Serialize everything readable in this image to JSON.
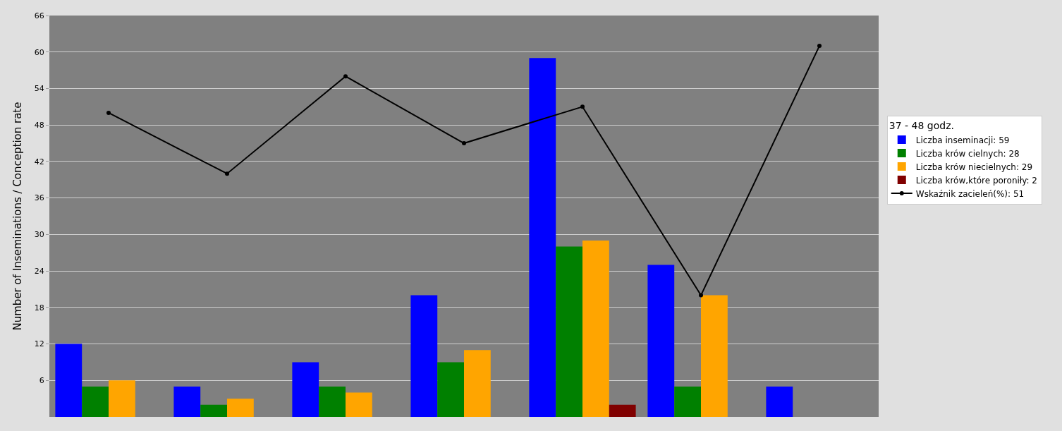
{
  "chart_data": {
    "type": "bar",
    "ylabel": "Number of Inseminations / Conception rate",
    "legend_title": "37 - 48 godz.",
    "categories": [
      null,
      null,
      null,
      null,
      null,
      null,
      null
    ],
    "series": [
      {
        "name": "Liczba inseminacji: 59",
        "color": "#0000ff",
        "values": [
          12,
          5,
          9,
          20,
          59,
          25,
          5
        ]
      },
      {
        "name": "Liczba krów cielnych: 28",
        "color": "#008000",
        "values": [
          5,
          2,
          5,
          9,
          28,
          5,
          null
        ]
      },
      {
        "name": "Liczba krów niecielnych: 29",
        "color": "#ffa500",
        "values": [
          6,
          3,
          4,
          11,
          29,
          20,
          null
        ]
      },
      {
        "name": "Liczba krów,które poroniły: 2",
        "color": "#800000",
        "values": [
          0,
          0,
          0,
          0,
          2,
          0,
          null
        ]
      },
      {
        "name": "Wskaźnik zacieleń(%): 51",
        "type": "line",
        "color": "#000000",
        "values": [
          50,
          40,
          56,
          45,
          51,
          20,
          61
        ]
      }
    ],
    "ylim": [
      0,
      66
    ],
    "yticks": [
      6,
      12,
      18,
      24,
      30,
      36,
      42,
      48,
      54,
      60,
      66
    ],
    "grid": true,
    "legend": "right",
    "marker": "circle",
    "line_style": "solid",
    "tick_labels": "y"
  }
}
